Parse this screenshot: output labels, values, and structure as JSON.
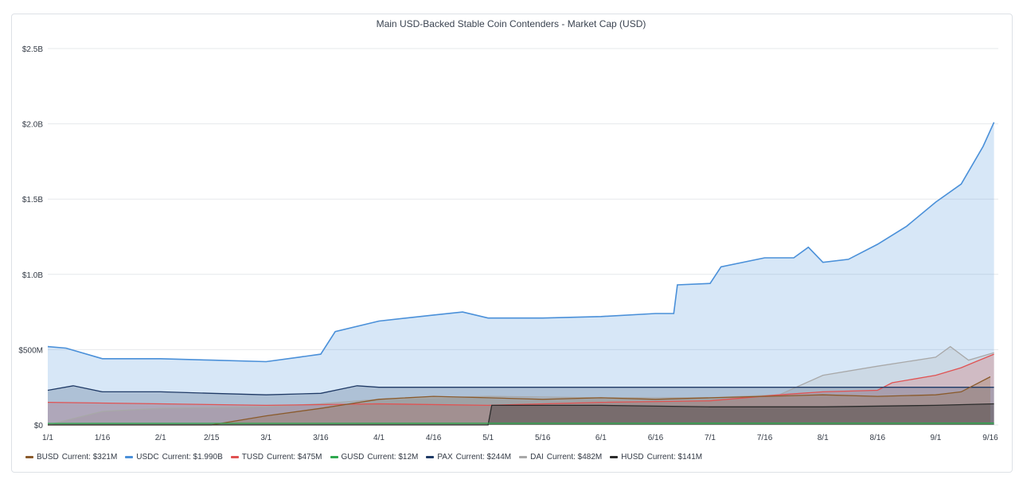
{
  "chart_data": {
    "type": "area",
    "title": "Main USD-Backed Stable Coin Contenders - Market Cap (USD)",
    "xlabel": "",
    "ylabel": "",
    "ylim": [
      0,
      2.5
    ],
    "y_unit": "billions USD",
    "y_ticks": [
      "$0",
      "$500M",
      "$1.0B",
      "$1.5B",
      "$2.0B",
      "$2.5B"
    ],
    "x_ticks": [
      "1/1",
      "1/16",
      "2/1",
      "2/15",
      "3/1",
      "3/16",
      "4/1",
      "4/16",
      "5/1",
      "5/16",
      "6/1",
      "6/16",
      "7/1",
      "7/16",
      "8/1",
      "8/16",
      "9/1",
      "9/16"
    ],
    "grid": true,
    "legend_position": "bottom",
    "current_label": "Current:",
    "series": [
      {
        "name": "BUSD",
        "current": "$321M",
        "color": "#8a5a2b",
        "x": [
          "1/1",
          "2/15",
          "3/1",
          "3/16",
          "4/1",
          "4/16",
          "5/1",
          "5/16",
          "6/1",
          "6/16",
          "7/1",
          "7/16",
          "8/1",
          "8/16",
          "9/1",
          "9/8",
          "9/16"
        ],
        "values": [
          0.0,
          0.0,
          0.06,
          0.11,
          0.17,
          0.19,
          0.18,
          0.17,
          0.18,
          0.17,
          0.18,
          0.19,
          0.2,
          0.19,
          0.2,
          0.22,
          0.32
        ]
      },
      {
        "name": "USDC",
        "current": "$1.990B",
        "color": "#4a90d9",
        "x": [
          "1/1",
          "1/6",
          "1/16",
          "2/1",
          "2/15",
          "3/1",
          "3/10",
          "3/16",
          "3/20",
          "4/1",
          "4/16",
          "4/24",
          "5/1",
          "5/16",
          "6/1",
          "6/16",
          "6/21",
          "6/22",
          "7/1",
          "7/4",
          "7/16",
          "7/24",
          "7/28",
          "8/1",
          "8/8",
          "8/16",
          "8/24",
          "9/1",
          "9/8",
          "9/14",
          "9/17"
        ],
        "values": [
          0.52,
          0.51,
          0.44,
          0.44,
          0.43,
          0.42,
          0.45,
          0.47,
          0.62,
          0.69,
          0.73,
          0.75,
          0.71,
          0.71,
          0.72,
          0.74,
          0.74,
          0.93,
          0.94,
          1.05,
          1.11,
          1.11,
          1.18,
          1.08,
          1.1,
          1.2,
          1.32,
          1.48,
          1.6,
          1.85,
          2.01
        ]
      },
      {
        "name": "TUSD",
        "current": "$475M",
        "color": "#e05252",
        "x": [
          "1/1",
          "2/1",
          "3/1",
          "4/1",
          "5/1",
          "6/1",
          "7/1",
          "7/20",
          "8/1",
          "8/16",
          "8/20",
          "9/1",
          "9/8",
          "9/12",
          "9/17"
        ],
        "values": [
          0.15,
          0.14,
          0.13,
          0.14,
          0.13,
          0.15,
          0.16,
          0.2,
          0.22,
          0.23,
          0.28,
          0.33,
          0.38,
          0.42,
          0.47
        ]
      },
      {
        "name": "GUSD",
        "current": "$12M",
        "color": "#2ea84f",
        "x": [
          "1/1",
          "9/17"
        ],
        "values": [
          0.01,
          0.012
        ]
      },
      {
        "name": "PAX",
        "current": "$244M",
        "color": "#1f3a66",
        "x": [
          "1/1",
          "1/8",
          "1/16",
          "2/1",
          "2/15",
          "3/1",
          "3/16",
          "3/26",
          "4/1",
          "4/16",
          "5/1",
          "6/1",
          "7/1",
          "8/1",
          "9/1",
          "9/17"
        ],
        "values": [
          0.23,
          0.26,
          0.22,
          0.22,
          0.21,
          0.2,
          0.21,
          0.26,
          0.25,
          0.25,
          0.25,
          0.25,
          0.25,
          0.25,
          0.25,
          0.25
        ]
      },
      {
        "name": "DAI",
        "current": "$482M",
        "color": "#a8a8a8",
        "x": [
          "1/1",
          "1/16",
          "2/1",
          "3/1",
          "3/16",
          "4/1",
          "5/1",
          "6/1",
          "7/1",
          "7/20",
          "8/1",
          "8/16",
          "9/1",
          "9/5",
          "9/10",
          "9/17"
        ],
        "values": [
          0.0,
          0.09,
          0.11,
          0.12,
          0.14,
          0.17,
          0.19,
          0.18,
          0.18,
          0.2,
          0.33,
          0.39,
          0.45,
          0.52,
          0.43,
          0.48
        ]
      },
      {
        "name": "HUSD",
        "current": "$141M",
        "color": "#2b2b2b",
        "x": [
          "1/1",
          "5/1",
          "5/2",
          "6/1",
          "7/1",
          "8/1",
          "9/1",
          "9/17"
        ],
        "values": [
          0.0,
          0.0,
          0.13,
          0.13,
          0.12,
          0.12,
          0.13,
          0.14
        ]
      }
    ]
  }
}
